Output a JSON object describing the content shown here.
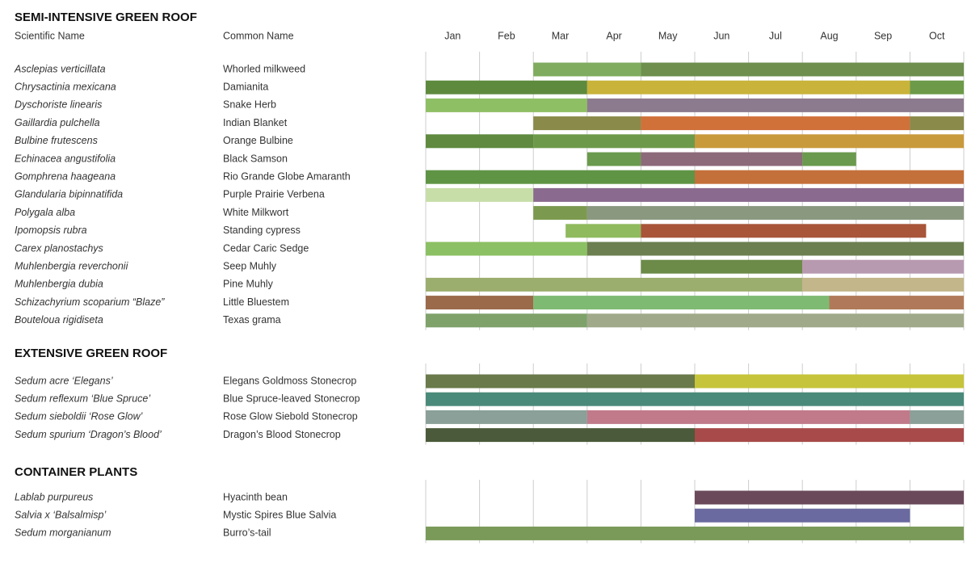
{
  "headers": {
    "scientific": "Scientific Name",
    "common": "Common Name"
  },
  "months": [
    "Jan",
    "Feb",
    "Mar",
    "Apr",
    "May",
    "Jun",
    "Jul",
    "Aug",
    "Sep",
    "Oct"
  ],
  "sections": [
    {
      "title": "SEMI-INTENSIVE GREEN ROOF",
      "rows": [
        {
          "scientific": "Asclepias verticillata",
          "common": "Whorled milkweed",
          "segments": [
            {
              "start": 2,
              "end": 4,
              "color": "#7fac5f"
            },
            {
              "start": 4,
              "end": 10,
              "color": "#6e8f4e"
            }
          ]
        },
        {
          "scientific": "Chrysactinia mexicana",
          "common": "Damianita",
          "segments": [
            {
              "start": 0,
              "end": 3,
              "color": "#5e8a3e"
            },
            {
              "start": 3,
              "end": 9,
              "color": "#c9b33a"
            },
            {
              "start": 9,
              "end": 10,
              "color": "#6c9a48"
            }
          ]
        },
        {
          "scientific": "Dyschoriste linearis",
          "common": "Snake Herb",
          "segments": [
            {
              "start": 0,
              "end": 3,
              "color": "#8fbf64"
            },
            {
              "start": 3,
              "end": 10,
              "color": "#8c7a8e"
            }
          ]
        },
        {
          "scientific": "Gaillardia pulchella",
          "common": "Indian Blanket",
          "segments": [
            {
              "start": 2,
              "end": 4,
              "color": "#8a8a4a"
            },
            {
              "start": 4,
              "end": 9,
              "color": "#d0713a"
            },
            {
              "start": 9,
              "end": 10,
              "color": "#8a8a4a"
            }
          ]
        },
        {
          "scientific": "Bulbine frutescens",
          "common": "Orange Bulbine",
          "segments": [
            {
              "start": 0,
              "end": 2,
              "color": "#5f8a3f"
            },
            {
              "start": 2,
              "end": 5,
              "color": "#6d9a4a"
            },
            {
              "start": 5,
              "end": 10,
              "color": "#c99a3c"
            }
          ]
        },
        {
          "scientific": "Echinacea angustifolia",
          "common": "Black Samson",
          "segments": [
            {
              "start": 3,
              "end": 4,
              "color": "#6a9a4d"
            },
            {
              "start": 4,
              "end": 7,
              "color": "#8c6a7a"
            },
            {
              "start": 7,
              "end": 8,
              "color": "#6a9a4d"
            }
          ]
        },
        {
          "scientific": "Gomphrena haageana",
          "common": "Rio Grande Globe Amaranth",
          "segments": [
            {
              "start": 0,
              "end": 5,
              "color": "#5f9445"
            },
            {
              "start": 5,
              "end": 10,
              "color": "#c4703a"
            }
          ]
        },
        {
          "scientific": "Glandularia bipinnatifida",
          "common": "Purple Prairie Verbena",
          "segments": [
            {
              "start": 0,
              "end": 2,
              "color": "#c7dea8"
            },
            {
              "start": 2,
              "end": 10,
              "color": "#8a6a8e"
            }
          ]
        },
        {
          "scientific": "Polygala alba",
          "common": "White Milkwort",
          "segments": [
            {
              "start": 2,
              "end": 3,
              "color": "#7c9a4f"
            },
            {
              "start": 3,
              "end": 10,
              "color": "#8a9880"
            }
          ]
        },
        {
          "scientific": "Ipomopsis rubra",
          "common": "Standing cypress",
          "segments": [
            {
              "start": 2.6,
              "end": 4,
              "color": "#8fba5e"
            },
            {
              "start": 4,
              "end": 9.3,
              "color": "#a8553a"
            }
          ]
        },
        {
          "scientific": "Carex planostachys",
          "common": "Cedar Caric Sedge",
          "segments": [
            {
              "start": 0,
              "end": 3,
              "color": "#8cc064"
            },
            {
              "start": 3,
              "end": 10,
              "color": "#6b7f50"
            }
          ]
        },
        {
          "scientific": "Muhlenbergia reverchonii",
          "common": "Seep Muhly",
          "segments": [
            {
              "start": 4,
              "end": 7,
              "color": "#6c8a48"
            },
            {
              "start": 7,
              "end": 10,
              "color": "#b89ab0"
            }
          ]
        },
        {
          "scientific": "Muhlenbergia dubia",
          "common": "Pine Muhly",
          "segments": [
            {
              "start": 0,
              "end": 7,
              "color": "#9cae6e"
            },
            {
              "start": 7,
              "end": 10,
              "color": "#c2b68a"
            }
          ]
        },
        {
          "scientific": "Schizachyrium scoparium “Blaze”",
          "common": "Little Bluestem",
          "segments": [
            {
              "start": 0,
              "end": 2,
              "color": "#9a6a4a"
            },
            {
              "start": 2,
              "end": 7.5,
              "color": "#7fba72"
            },
            {
              "start": 7.5,
              "end": 10,
              "color": "#b07a5a"
            }
          ]
        },
        {
          "scientific": "Bouteloua rigidiseta",
          "common": "Texas grama",
          "segments": [
            {
              "start": 0,
              "end": 3,
              "color": "#7ea26a"
            },
            {
              "start": 3,
              "end": 10,
              "color": "#a0aa8a"
            }
          ]
        }
      ]
    },
    {
      "title": "EXTENSIVE GREEN ROOF",
      "rows": [
        {
          "scientific": "Sedum acre ‘Elegans’",
          "common": "Elegans Goldmoss Stonecrop",
          "segments": [
            {
              "start": 0,
              "end": 5,
              "color": "#6a7a4a"
            },
            {
              "start": 5,
              "end": 10,
              "color": "#c6c43a"
            }
          ]
        },
        {
          "scientific": "Sedum reflexum ‘Blue Spruce’",
          "common": "Blue Spruce-leaved Stonecrop",
          "segments": [
            {
              "start": 0,
              "end": 10,
              "color": "#4a8a7a"
            }
          ]
        },
        {
          "scientific": "Sedum sieboldii ‘Rose Glow’",
          "common": "Rose Glow Siebold Stonecrop",
          "segments": [
            {
              "start": 0,
              "end": 3,
              "color": "#8aa098"
            },
            {
              "start": 3,
              "end": 9,
              "color": "#c07a8a"
            },
            {
              "start": 9,
              "end": 10,
              "color": "#8aa098"
            }
          ]
        },
        {
          "scientific": "Sedum spurium ‘Dragon’s Blood’",
          "common": "Dragon’s Blood Stonecrop",
          "segments": [
            {
              "start": 0,
              "end": 5,
              "color": "#4a5a3a"
            },
            {
              "start": 5,
              "end": 10,
              "color": "#a84a4a"
            }
          ]
        }
      ]
    },
    {
      "title": "CONTAINER PLANTS",
      "rows": [
        {
          "scientific": "Lablab purpureus",
          "common": "Hyacinth bean",
          "segments": [
            {
              "start": 5,
              "end": 10,
              "color": "#6a4a5a"
            }
          ]
        },
        {
          "scientific": "Salvia x ‘Balsalmisp’",
          "common": "Mystic Spires Blue Salvia",
          "segments": [
            {
              "start": 5,
              "end": 9,
              "color": "#6a6aa0"
            }
          ]
        },
        {
          "scientific": "Sedum morganianum",
          "common": "Burro’s-tail",
          "segments": [
            {
              "start": 0,
              "end": 10,
              "color": "#7a9a5a"
            }
          ]
        }
      ]
    }
  ]
}
